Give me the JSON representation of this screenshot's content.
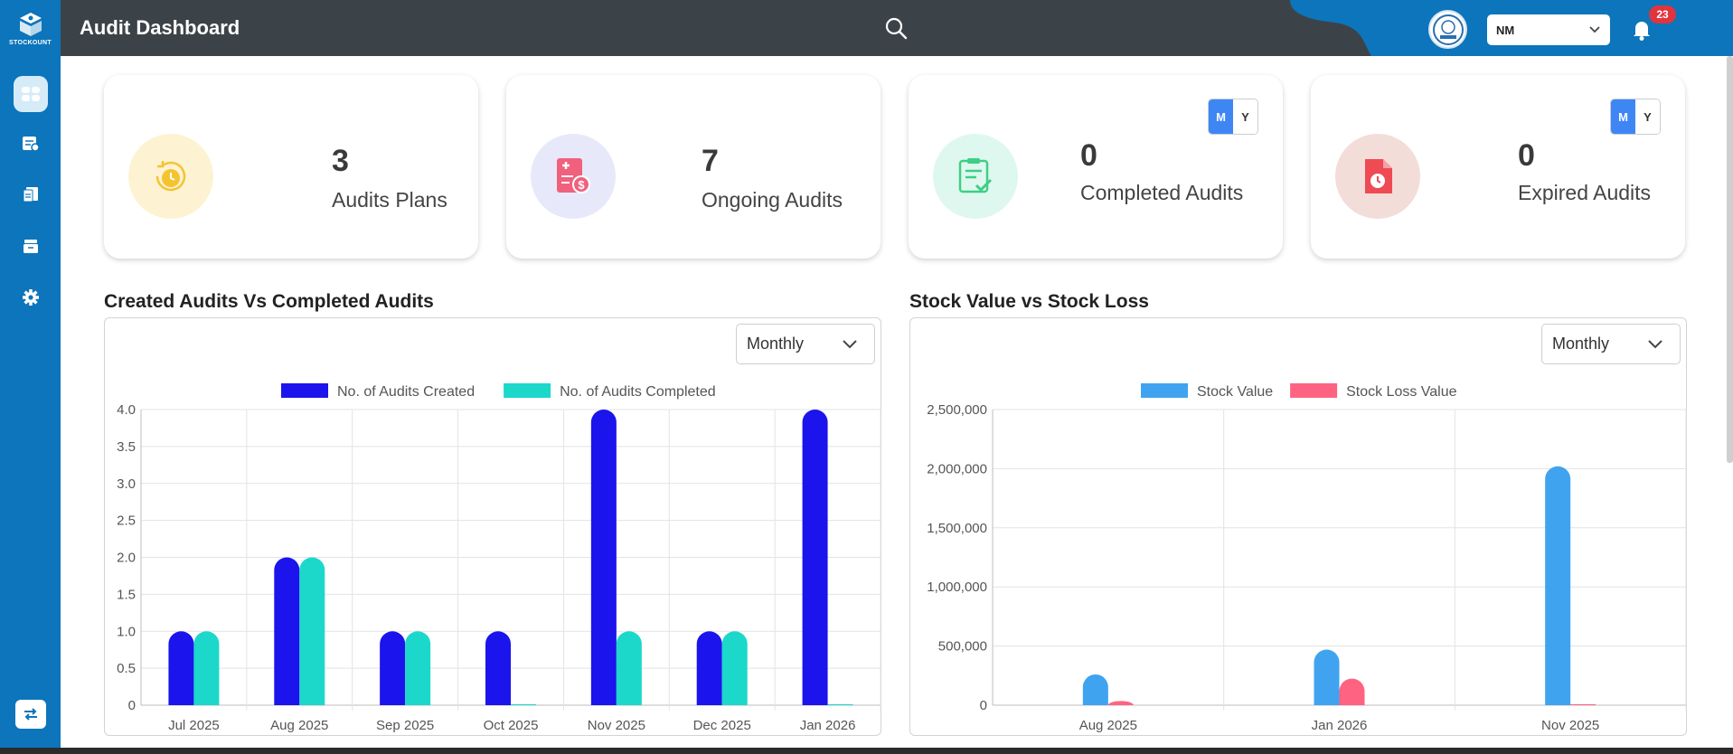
{
  "app": {
    "logo_text": "STOCKOUNT",
    "page_title": "Audit Dashboard",
    "user_initials": "NM",
    "notification_count": "23",
    "brand_color": "#0c75bb",
    "topbar_color": "#3c4348"
  },
  "sidebar": {
    "items": [
      {
        "icon": "dashboard-icon",
        "active": true
      },
      {
        "icon": "audit-plan-icon",
        "active": false
      },
      {
        "icon": "audit-report-icon",
        "active": false
      },
      {
        "icon": "stack-icon",
        "active": false
      },
      {
        "icon": "gear-icon",
        "active": false
      }
    ],
    "bottom_icon": "swap-icon"
  },
  "cards": [
    {
      "value": "3",
      "label": "Audits Plans",
      "icon": "audit-plan-clock-icon",
      "color": "#f4c430",
      "bg": "#fdf3d3"
    },
    {
      "value": "7",
      "label": "Ongoing Audits",
      "icon": "ongoing-audit-icon",
      "color": "#f0617e",
      "bg": "#e7e9fb"
    },
    {
      "value": "0",
      "label": "Completed Audits",
      "icon": "completed-audit-icon",
      "color": "#3fce86",
      "bg": "#def8ef",
      "toggle": {
        "m": "M",
        "y": "Y"
      }
    },
    {
      "value": "0",
      "label": "Expired Audits",
      "icon": "expired-audit-icon",
      "color": "#ee4b55",
      "bg": "#f3ddd9",
      "toggle": {
        "m": "M",
        "y": "Y"
      }
    }
  ],
  "audits_chart": {
    "section_title": "Created Audits Vs Completed Audits",
    "period": "Monthly"
  },
  "stock_chart": {
    "section_title": "Stock Value vs Stock Loss",
    "period": "Monthly"
  },
  "chart_data": [
    {
      "type": "bar",
      "title": "Created Audits Vs Completed Audits",
      "categories": [
        "Jul 2025",
        "Aug 2025",
        "Sep 2025",
        "Oct 2025",
        "Nov 2025",
        "Dec 2025",
        "Jan 2026"
      ],
      "series": [
        {
          "name": "No. of Audits Created",
          "color": "#1b14ec",
          "values": [
            1,
            2,
            1,
            1,
            4,
            1,
            4
          ]
        },
        {
          "name": "No. of Audits Completed",
          "color": "#1bd8cb",
          "values": [
            1,
            2,
            1,
            0,
            1,
            1,
            0
          ]
        }
      ],
      "ylim": [
        0,
        4
      ],
      "yticks": [
        "0",
        "0.5",
        "1.0",
        "1.5",
        "2.0",
        "2.5",
        "3.0",
        "3.5",
        "4.0"
      ],
      "grid": true,
      "legend": "top-center"
    },
    {
      "type": "bar",
      "title": "Stock Value vs Stock Loss",
      "categories": [
        "Aug 2025",
        "Jan 2026",
        "Nov 2025"
      ],
      "series": [
        {
          "name": "Stock Value",
          "color": "#40a3f0",
          "values": [
            260000,
            470000,
            2020000
          ]
        },
        {
          "name": "Stock Loss Value",
          "color": "#ff6382",
          "values": [
            35000,
            225000,
            2000
          ]
        }
      ],
      "ylim": [
        0,
        2500000
      ],
      "yticks": [
        "0",
        "500,000",
        "1,000,000",
        "1,500,000",
        "2,000,000",
        "2,500,000"
      ],
      "grid": true,
      "legend": "top-center"
    }
  ]
}
